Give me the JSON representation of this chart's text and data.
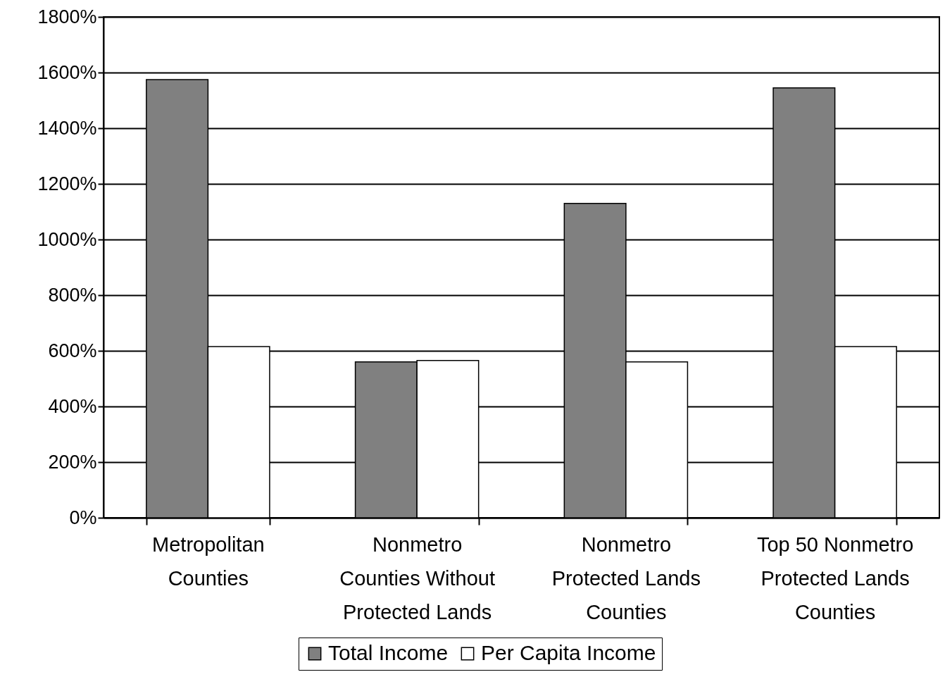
{
  "chart_data": {
    "type": "bar",
    "categories": [
      "Metropolitan Counties",
      "Nonmetro Counties Without Protected Lands",
      "Nonmetro Protected Lands Counties",
      "Top 50 Nonmetro Protected Lands Counties"
    ],
    "series": [
      {
        "name": "Total Income",
        "color": "#808080",
        "values": [
          1575,
          560,
          1130,
          1545
        ]
      },
      {
        "name": "Per Capita Income",
        "color": "#ffffff",
        "values": [
          615,
          565,
          560,
          615
        ]
      }
    ],
    "ylim": [
      0,
      1800
    ],
    "yticks": [
      {
        "value": 0,
        "label": "0%"
      },
      {
        "value": 200,
        "label": "200%"
      },
      {
        "value": 400,
        "label": "400%"
      },
      {
        "value": 600,
        "label": "600%"
      },
      {
        "value": 800,
        "label": "800%"
      },
      {
        "value": 1000,
        "label": "1000%"
      },
      {
        "value": 1200,
        "label": "1200%"
      },
      {
        "value": 1400,
        "label": "1400%"
      },
      {
        "value": 1600,
        "label": "1600%"
      },
      {
        "value": 1800,
        "label": "1800%"
      }
    ],
    "grid": "y",
    "legend": "bottom"
  }
}
